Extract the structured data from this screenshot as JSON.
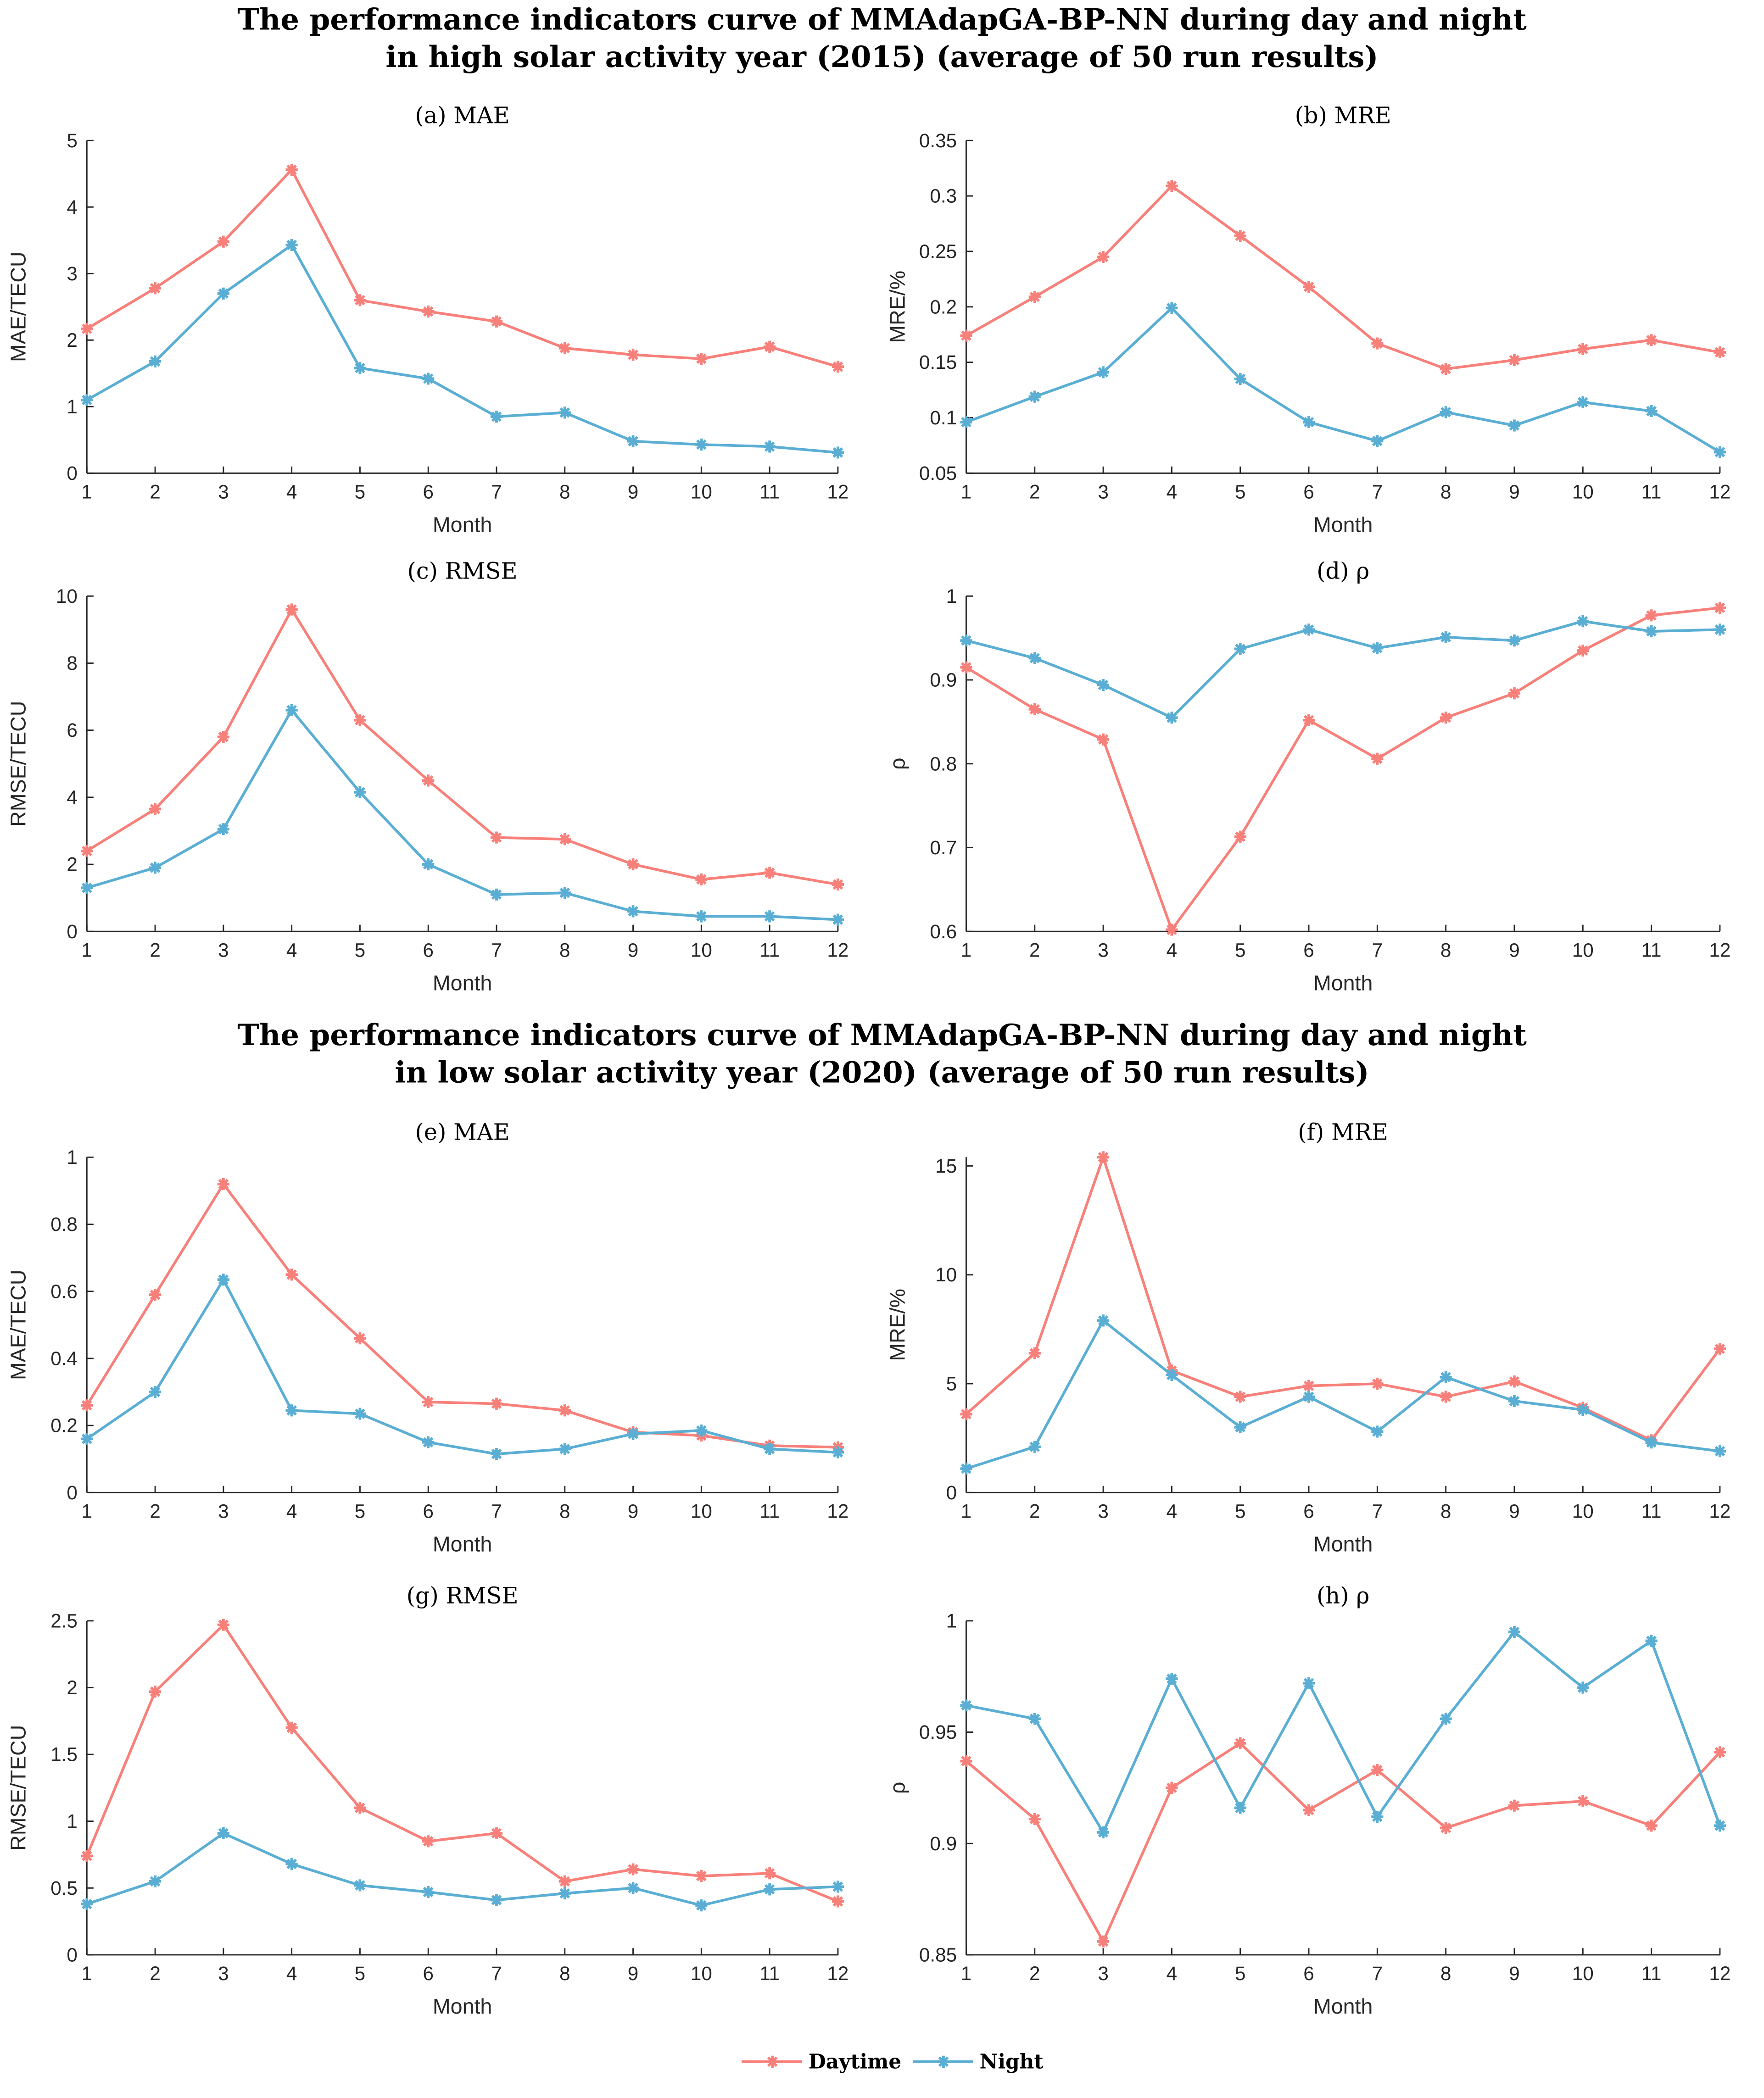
{
  "titles": [
    {
      "line1": "The performance indicators curve of MMAdapGA-BP-NN during day and night",
      "line2": "in high solar activity year (2015) (average of 50 run results)"
    },
    {
      "line1": "The performance indicators curve of MMAdapGA-BP-NN during day and night",
      "line2": "in low solar activity year (2020) (average of 50 run results)"
    }
  ],
  "legend": {
    "daytime": "Daytime",
    "night": "Night"
  },
  "colors": {
    "daytime": "#f8807a",
    "night": "#5aaed3"
  },
  "chart_data": [
    {
      "type": "line",
      "title": "(a) MAE",
      "xlabel": "Month",
      "ylabel": "MAE/TECU",
      "x": [
        1,
        2,
        3,
        4,
        5,
        6,
        7,
        8,
        9,
        10,
        11,
        12
      ],
      "ylim": [
        0,
        5
      ],
      "yticks": [
        0,
        1,
        2,
        3,
        4,
        5
      ],
      "yticklabels": [
        "0",
        "1",
        "2",
        "3",
        "4",
        "5"
      ],
      "series": [
        {
          "name": "Daytime",
          "values": [
            2.17,
            2.78,
            3.48,
            4.56,
            2.6,
            2.43,
            2.28,
            1.88,
            1.78,
            1.72,
            1.9,
            1.6
          ]
        },
        {
          "name": "Night",
          "values": [
            1.1,
            1.68,
            2.7,
            3.43,
            1.58,
            1.42,
            0.85,
            0.91,
            0.48,
            0.43,
            0.4,
            0.31
          ]
        }
      ]
    },
    {
      "type": "line",
      "title": "(b) MRE",
      "xlabel": "Month",
      "ylabel": "MRE/%",
      "x": [
        1,
        2,
        3,
        4,
        5,
        6,
        7,
        8,
        9,
        10,
        11,
        12
      ],
      "ylim": [
        0.05,
        0.35
      ],
      "yticks": [
        0.05,
        0.1,
        0.15,
        0.2,
        0.25,
        0.3,
        0.35
      ],
      "yticklabels": [
        "0.05",
        "0.1",
        "0.15",
        "0.2",
        "0.25",
        "0.3",
        "0.35"
      ],
      "series": [
        {
          "name": "Daytime",
          "values": [
            0.174,
            0.209,
            0.245,
            0.309,
            0.264,
            0.218,
            0.167,
            0.144,
            0.152,
            0.162,
            0.17,
            0.159
          ]
        },
        {
          "name": "Night",
          "values": [
            0.096,
            0.119,
            0.141,
            0.199,
            0.135,
            0.096,
            0.079,
            0.105,
            0.093,
            0.114,
            0.106,
            0.069
          ]
        }
      ]
    },
    {
      "type": "line",
      "title": "(c) RMSE",
      "xlabel": "Month",
      "ylabel": "RMSE/TECU",
      "x": [
        1,
        2,
        3,
        4,
        5,
        6,
        7,
        8,
        9,
        10,
        11,
        12
      ],
      "ylim": [
        0,
        10
      ],
      "yticks": [
        0,
        2,
        4,
        6,
        8,
        10
      ],
      "yticklabels": [
        "0",
        "2",
        "4",
        "6",
        "8",
        "10"
      ],
      "series": [
        {
          "name": "Daytime",
          "values": [
            2.4,
            3.65,
            5.8,
            9.6,
            6.3,
            4.5,
            2.8,
            2.75,
            2.0,
            1.55,
            1.75,
            1.4
          ]
        },
        {
          "name": "Night",
          "values": [
            1.3,
            1.9,
            3.05,
            6.6,
            4.15,
            2.0,
            1.1,
            1.15,
            0.6,
            0.45,
            0.45,
            0.35
          ]
        }
      ]
    },
    {
      "type": "line",
      "title": "(d) ρ",
      "xlabel": "Month",
      "ylabel": "ρ",
      "x": [
        1,
        2,
        3,
        4,
        5,
        6,
        7,
        8,
        9,
        10,
        11,
        12
      ],
      "ylim": [
        0.6,
        1
      ],
      "yticks": [
        0.6,
        0.7,
        0.8,
        0.9,
        1
      ],
      "yticklabels": [
        "0.6",
        "0.7",
        "0.8",
        "0.9",
        "1"
      ],
      "series": [
        {
          "name": "Daytime",
          "values": [
            0.915,
            0.865,
            0.829,
            0.602,
            0.713,
            0.852,
            0.806,
            0.855,
            0.884,
            0.935,
            0.977,
            0.986
          ]
        },
        {
          "name": "Night",
          "values": [
            0.947,
            0.926,
            0.894,
            0.855,
            0.937,
            0.96,
            0.938,
            0.951,
            0.947,
            0.97,
            0.958,
            0.96
          ]
        }
      ]
    },
    {
      "type": "line",
      "title": "(e) MAE",
      "xlabel": "Month",
      "ylabel": "MAE/TECU",
      "x": [
        1,
        2,
        3,
        4,
        5,
        6,
        7,
        8,
        9,
        10,
        11,
        12
      ],
      "ylim": [
        0,
        1
      ],
      "yticks": [
        0,
        0.2,
        0.4,
        0.6,
        0.8,
        1
      ],
      "yticklabels": [
        "0",
        "0.2",
        "0.4",
        "0.6",
        "0.8",
        "1"
      ],
      "series": [
        {
          "name": "Daytime",
          "values": [
            0.26,
            0.59,
            0.92,
            0.65,
            0.46,
            0.27,
            0.265,
            0.245,
            0.18,
            0.17,
            0.14,
            0.135
          ]
        },
        {
          "name": "Night",
          "values": [
            0.16,
            0.3,
            0.635,
            0.245,
            0.235,
            0.15,
            0.115,
            0.13,
            0.175,
            0.185,
            0.13,
            0.12
          ]
        }
      ]
    },
    {
      "type": "line",
      "title": "(f) MRE",
      "xlabel": "Month",
      "ylabel": "MRE/%",
      "x": [
        1,
        2,
        3,
        4,
        5,
        6,
        7,
        8,
        9,
        10,
        11,
        12
      ],
      "ylim": [
        0,
        15.4
      ],
      "yticks": [
        0,
        5,
        10,
        15
      ],
      "yticklabels": [
        "0",
        "5",
        "10",
        "15"
      ],
      "series": [
        {
          "name": "Daytime",
          "values": [
            3.6,
            6.4,
            15.4,
            5.6,
            4.4,
            4.9,
            5.0,
            4.4,
            5.1,
            3.9,
            2.4,
            6.6
          ]
        },
        {
          "name": "Night",
          "values": [
            1.1,
            2.1,
            7.9,
            5.4,
            3.0,
            4.4,
            2.8,
            5.3,
            4.2,
            3.8,
            2.3,
            1.9
          ]
        }
      ]
    },
    {
      "type": "line",
      "title": "(g) RMSE",
      "xlabel": "Month",
      "ylabel": "RMSE/TECU",
      "x": [
        1,
        2,
        3,
        4,
        5,
        6,
        7,
        8,
        9,
        10,
        11,
        12
      ],
      "ylim": [
        0,
        2.5
      ],
      "yticks": [
        0,
        0.5,
        1,
        1.5,
        2,
        2.5
      ],
      "yticklabels": [
        "0",
        "0.5",
        "1",
        "1.5",
        "2",
        "2.5"
      ],
      "series": [
        {
          "name": "Daytime",
          "values": [
            0.74,
            1.97,
            2.47,
            1.7,
            1.1,
            0.85,
            0.91,
            0.55,
            0.64,
            0.59,
            0.61,
            0.4
          ]
        },
        {
          "name": "Night",
          "values": [
            0.38,
            0.55,
            0.91,
            0.68,
            0.52,
            0.47,
            0.41,
            0.46,
            0.5,
            0.37,
            0.49,
            0.51
          ]
        }
      ]
    },
    {
      "type": "line",
      "title": "(h) ρ",
      "xlabel": "Month",
      "ylabel": "ρ",
      "x": [
        1,
        2,
        3,
        4,
        5,
        6,
        7,
        8,
        9,
        10,
        11,
        12
      ],
      "ylim": [
        0.85,
        1
      ],
      "yticks": [
        0.85,
        0.9,
        0.95,
        1
      ],
      "yticklabels": [
        "0.85",
        "0.9",
        "0.95",
        "1"
      ],
      "series": [
        {
          "name": "Daytime",
          "values": [
            0.937,
            0.911,
            0.856,
            0.925,
            0.945,
            0.915,
            0.933,
            0.907,
            0.917,
            0.919,
            0.908,
            0.941
          ]
        },
        {
          "name": "Night",
          "values": [
            0.962,
            0.956,
            0.905,
            0.974,
            0.916,
            0.972,
            0.912,
            0.956,
            0.995,
            0.97,
            0.991,
            0.908
          ]
        }
      ]
    }
  ]
}
